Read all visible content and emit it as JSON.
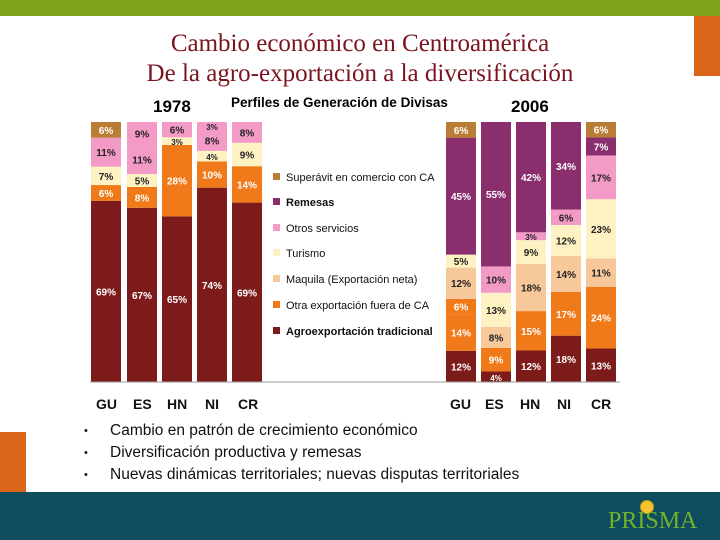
{
  "title": {
    "line1": "Cambio económico en Centroamérica",
    "line2": "De la agro-exportación a la diversificación"
  },
  "chart_data": {
    "type": "bar",
    "stacked": true,
    "title": "Perfiles de Generación de Divisas",
    "groups": [
      {
        "year": "1978",
        "categories": [
          "GU",
          "ES",
          "HN",
          "NI",
          "CR"
        ]
      },
      {
        "year": "2006",
        "categories": [
          "GU",
          "ES",
          "HN",
          "NI",
          "CR"
        ]
      }
    ],
    "colors": {
      "agro": "#7d1a1a",
      "otra": "#f07a1a",
      "maquila": "#f7c99a",
      "turismo": "#fff2c2",
      "otros_serv": "#f49ac6",
      "remesas": "#8b2e6e",
      "superavit": "#ba7d35"
    },
    "legend": [
      {
        "key": "superavit",
        "label": "Superávit en comercio con CA"
      },
      {
        "key": "remesas",
        "label": "Remesas"
      },
      {
        "key": "otros_serv",
        "label": "Otros servicios"
      },
      {
        "key": "turismo",
        "label": "Turismo"
      },
      {
        "key": "maquila",
        "label": "Maquila (Exportación neta)"
      },
      {
        "key": "otra",
        "label": "Otra exportación fuera de CA"
      },
      {
        "key": "agro",
        "label": "Agroexportación tradicional"
      }
    ],
    "bars_1978": [
      {
        "country": "GU",
        "segments": [
          {
            "key": "agro",
            "value": 69,
            "label": "69%"
          },
          {
            "key": "otra",
            "value": 6,
            "label": "6%"
          },
          {
            "key": "turismo",
            "value": 7,
            "label": "7%"
          },
          {
            "key": "otros_serv",
            "value": 11,
            "label": "11%"
          },
          {
            "key": "superavit",
            "value": 6,
            "label": "6%"
          }
        ]
      },
      {
        "country": "ES",
        "segments": [
          {
            "key": "agro",
            "value": 67,
            "label": "67%"
          },
          {
            "key": "otra",
            "value": 8,
            "label": "8%"
          },
          {
            "key": "turismo",
            "value": 5,
            "label": "5%"
          },
          {
            "key": "otros_serv",
            "value": 11,
            "label": "11%"
          },
          {
            "key": "otros_serv",
            "value": 9,
            "label": "9%"
          }
        ]
      },
      {
        "country": "HN",
        "segments": [
          {
            "key": "agro",
            "value": 65,
            "label": "65%"
          },
          {
            "key": "otra",
            "value": 28,
            "label": "28%"
          },
          {
            "key": "turismo",
            "value": 3,
            "label": "3%"
          },
          {
            "key": "otros_serv",
            "value": 6,
            "label": "6%"
          }
        ]
      },
      {
        "country": "NI",
        "segments": [
          {
            "key": "agro",
            "value": 74,
            "label": "74%"
          },
          {
            "key": "otra",
            "value": 10,
            "label": "10%"
          },
          {
            "key": "turismo",
            "value": 4,
            "label": "4%"
          },
          {
            "key": "otros_serv",
            "value": 8,
            "label": "8%"
          },
          {
            "key": "otros_serv",
            "value": 3,
            "label": "3%"
          }
        ]
      },
      {
        "country": "CR",
        "segments": [
          {
            "key": "agro",
            "value": 69,
            "label": "69%"
          },
          {
            "key": "otra",
            "value": 14,
            "label": "14%"
          },
          {
            "key": "turismo",
            "value": 9,
            "label": "9%"
          },
          {
            "key": "otros_serv",
            "value": 8,
            "label": "8%"
          }
        ]
      }
    ],
    "bars_2006": [
      {
        "country": "GU",
        "segments": [
          {
            "key": "agro",
            "value": 12,
            "label": "12%"
          },
          {
            "key": "otra",
            "value": 14,
            "label": "14%"
          },
          {
            "key": "otra",
            "value": 6,
            "label": "6%"
          },
          {
            "key": "maquila",
            "value": 12,
            "label": "12%"
          },
          {
            "key": "turismo",
            "value": 5,
            "label": "5%"
          },
          {
            "key": "remesas",
            "value": 45,
            "label": "45%"
          },
          {
            "key": "superavit",
            "value": 6,
            "label": "6%"
          }
        ]
      },
      {
        "country": "ES",
        "segments": [
          {
            "key": "agro",
            "value": 4,
            "label": "4%"
          },
          {
            "key": "otra",
            "value": 9,
            "label": "9%"
          },
          {
            "key": "maquila",
            "value": 8,
            "label": "8%"
          },
          {
            "key": "turismo",
            "value": 13,
            "label": "13%"
          },
          {
            "key": "otros_serv",
            "value": 10,
            "label": "10%"
          },
          {
            "key": "remesas",
            "value": 55,
            "label": "55%"
          }
        ]
      },
      {
        "country": "HN",
        "segments": [
          {
            "key": "agro",
            "value": 12,
            "label": "12%"
          },
          {
            "key": "otra",
            "value": 15,
            "label": "15%"
          },
          {
            "key": "maquila",
            "value": 18,
            "label": "18%"
          },
          {
            "key": "turismo",
            "value": 9,
            "label": "9%"
          },
          {
            "key": "otros_serv",
            "value": 3,
            "label": "3%"
          },
          {
            "key": "remesas",
            "value": 42,
            "label": "42%"
          }
        ]
      },
      {
        "country": "NI",
        "segments": [
          {
            "key": "agro",
            "value": 18,
            "label": "18%"
          },
          {
            "key": "otra",
            "value": 17,
            "label": "17%"
          },
          {
            "key": "maquila",
            "value": 14,
            "label": "14%"
          },
          {
            "key": "turismo",
            "value": 12,
            "label": "12%"
          },
          {
            "key": "otros_serv",
            "value": 6,
            "label": "6%"
          },
          {
            "key": "remesas",
            "value": 34,
            "label": "34%"
          }
        ]
      },
      {
        "country": "CR",
        "segments": [
          {
            "key": "agro",
            "value": 13,
            "label": "13%"
          },
          {
            "key": "otra",
            "value": 24,
            "label": "24%"
          },
          {
            "key": "maquila",
            "value": 11,
            "label": "11%"
          },
          {
            "key": "turismo",
            "value": 23,
            "label": "23%"
          },
          {
            "key": "otros_serv",
            "value": 17,
            "label": "17%"
          },
          {
            "key": "remesas",
            "value": 7,
            "label": "7%"
          },
          {
            "key": "superavit",
            "value": 6,
            "label": "6%"
          }
        ]
      }
    ]
  },
  "bullets": [
    "Cambio en patrón de crecimiento económico",
    "Diversificación productiva y remesas",
    "Nuevas dinámicas territoriales; nuevas disputas territoriales"
  ],
  "bullet_marker": "•",
  "logo_text": "PRISMA"
}
